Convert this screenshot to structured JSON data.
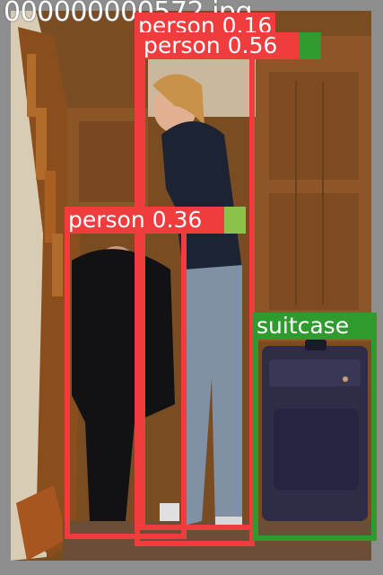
{
  "image": {
    "filename": "000000000572.jpg",
    "colors": {
      "person_box": "#f03c3c",
      "suitcase_box": "#2f9b2f",
      "label_text": "#ffffff",
      "frame": "#8e8e8e"
    }
  },
  "detections": [
    {
      "label": "person",
      "confidence": "0.16"
    },
    {
      "label": "person",
      "confidence": "0.56"
    },
    {
      "label": "person",
      "confidence": "0.36"
    },
    {
      "label": "suitcase",
      "confidence": ""
    }
  ]
}
